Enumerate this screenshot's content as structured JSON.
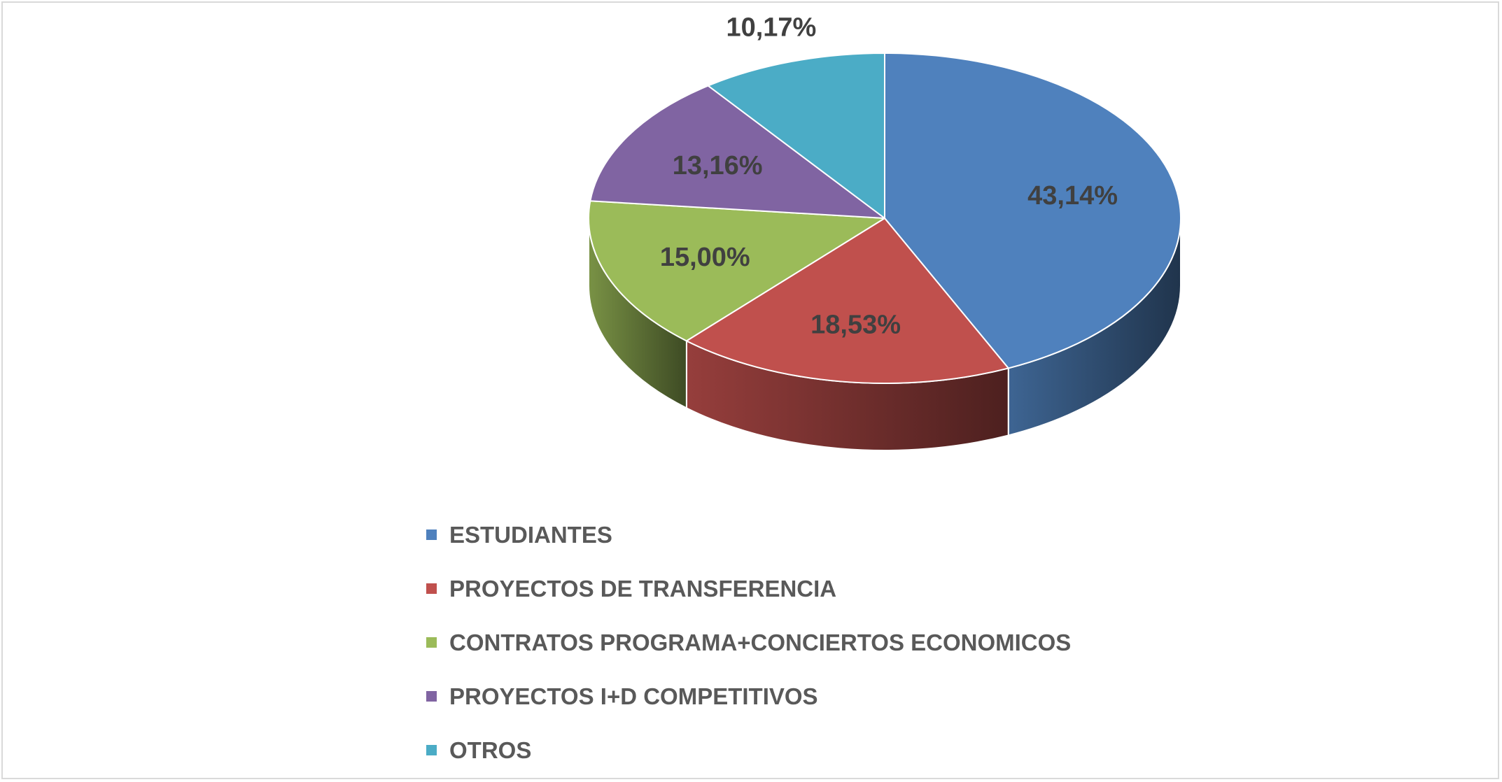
{
  "chart_data": {
    "type": "pie",
    "title": "",
    "categories": [
      "ESTUDIANTES",
      "PROYECTOS DE TRANSFERENCIA",
      "CONTRATOS PROGRAMA+CONCIERTOS ECONOMICOS",
      "PROYECTOS I+D COMPETITIVOS",
      "OTROS"
    ],
    "values": [
      43.14,
      18.53,
      15.0,
      13.16,
      10.17
    ],
    "data_labels": [
      "43,14%",
      "18,53%",
      "15,00%",
      "13,16%",
      "10,17%"
    ],
    "colors": [
      "#4f81bd",
      "#c0504d",
      "#9bbb59",
      "#8064a2",
      "#4bacc6"
    ],
    "legend_position": "bottom",
    "three_d": true
  }
}
